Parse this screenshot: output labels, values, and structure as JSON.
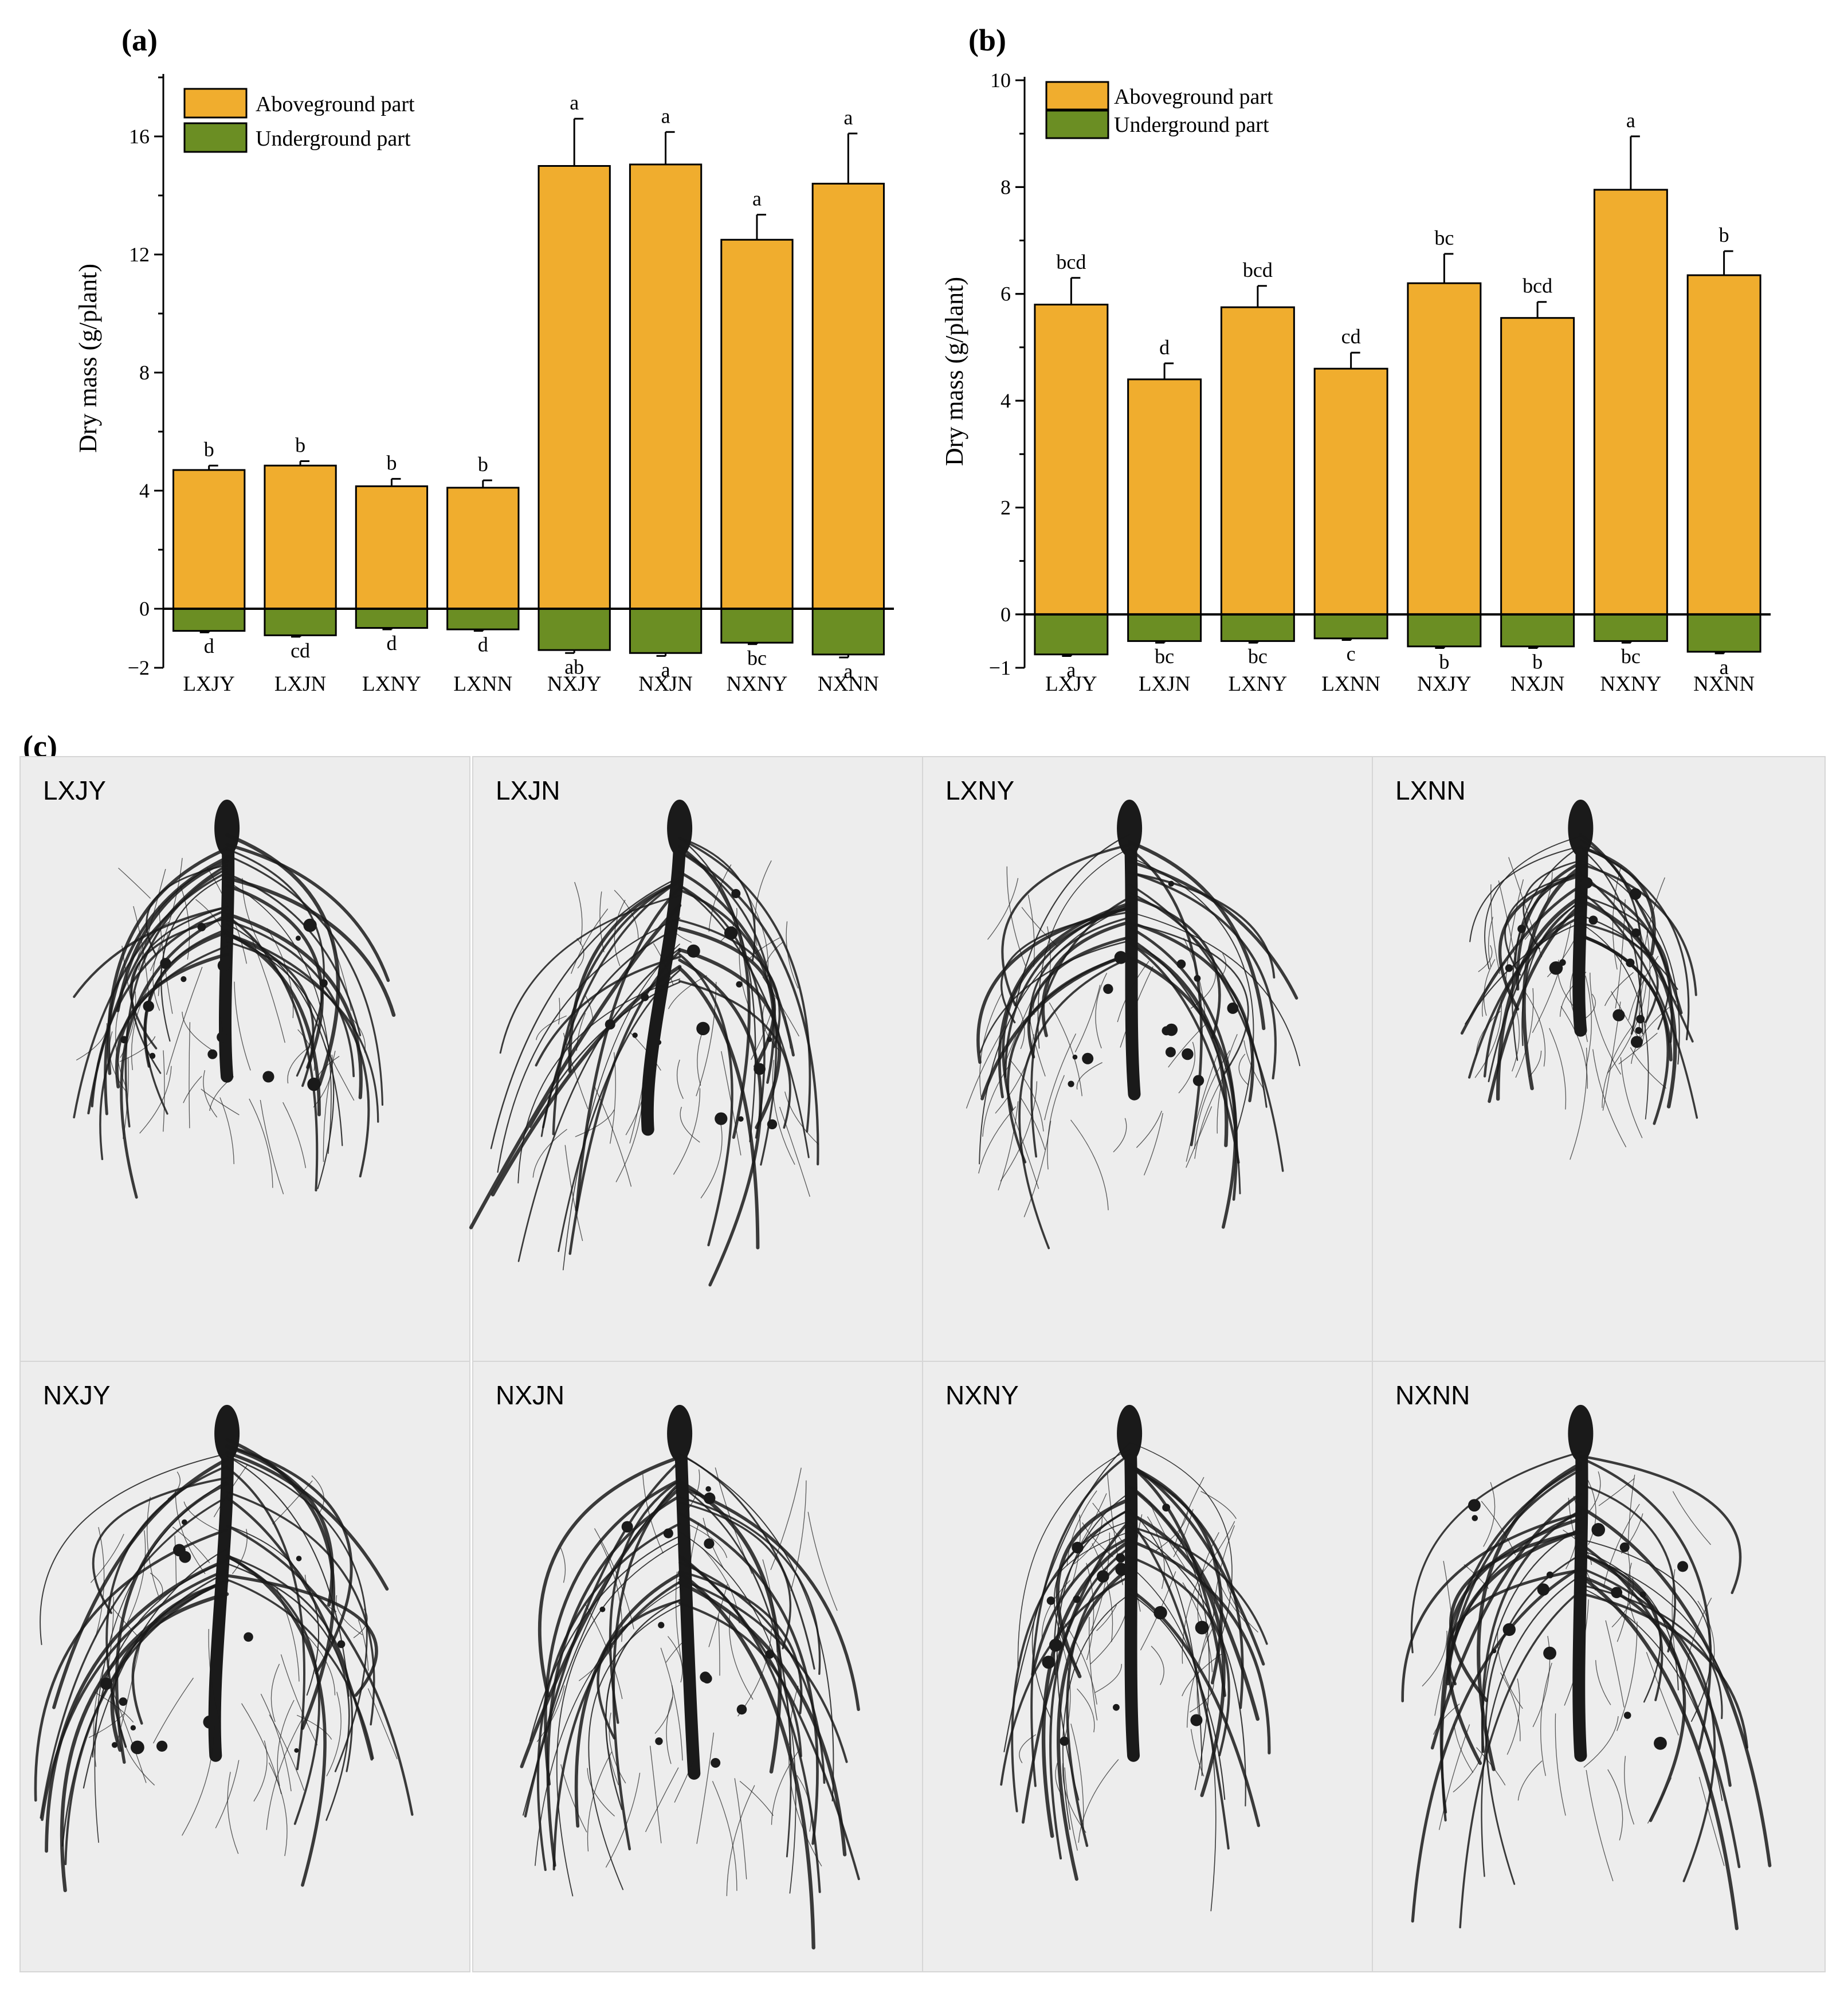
{
  "colors": {
    "above": "#F0AD2E",
    "below": "#6B8E23",
    "photo_bg": "#EDEDED",
    "root": "#1A1A1A"
  },
  "chart_data": [
    {
      "panel": "(a)",
      "type": "bar",
      "ylabel": "Dry mass (g/plant)",
      "ylim": [
        -2,
        18
      ],
      "yticks": [
        -2,
        0,
        4,
        8,
        12,
        16
      ],
      "categories": [
        "LXJY",
        "LXJN",
        "LXNY",
        "LXNN",
        "NXJY",
        "NXJN",
        "NXNY",
        "NXNN"
      ],
      "legend": [
        "Aboveground part",
        "Underground part"
      ],
      "series": [
        {
          "name": "Aboveground part",
          "values": [
            4.7,
            4.85,
            4.15,
            4.1,
            15.0,
            15.05,
            12.5,
            14.4
          ],
          "errors": [
            0.15,
            0.15,
            0.25,
            0.25,
            1.6,
            1.1,
            0.85,
            1.7
          ],
          "letters": [
            "b",
            "b",
            "b",
            "b",
            "a",
            "a",
            "a",
            "a"
          ]
        },
        {
          "name": "Underground part",
          "values": [
            -0.75,
            -0.9,
            -0.65,
            -0.7,
            -1.4,
            -1.5,
            -1.15,
            -1.55
          ],
          "errors": [
            0.05,
            0.05,
            0.05,
            0.05,
            0.1,
            0.1,
            0.05,
            0.1
          ],
          "letters": [
            "d",
            "cd",
            "d",
            "d",
            "ab",
            "a",
            "bc",
            "a"
          ]
        }
      ]
    },
    {
      "panel": "(b)",
      "type": "bar",
      "ylabel": "Dry mass (g/plant)",
      "ylim": [
        -1,
        10
      ],
      "yticks": [
        -1,
        0,
        2,
        4,
        6,
        8,
        10
      ],
      "categories": [
        "LXJY",
        "LXJN",
        "LXNY",
        "LXNN",
        "NXJY",
        "NXJN",
        "NXNY",
        "NXNN"
      ],
      "legend": [
        "Aboveground part",
        "Underground part"
      ],
      "series": [
        {
          "name": "Aboveground part",
          "values": [
            5.8,
            4.4,
            5.75,
            4.6,
            6.2,
            5.55,
            7.95,
            6.35
          ],
          "errors": [
            0.5,
            0.3,
            0.4,
            0.3,
            0.55,
            0.3,
            1.0,
            0.45
          ],
          "letters": [
            "bcd",
            "d",
            "bcd",
            "cd",
            "bc",
            "bcd",
            "a",
            "b"
          ]
        },
        {
          "name": "Underground part",
          "values": [
            -0.75,
            -0.5,
            -0.5,
            -0.45,
            -0.6,
            -0.6,
            -0.5,
            -0.7
          ],
          "errors": [
            0.03,
            0.03,
            0.03,
            0.03,
            0.03,
            0.03,
            0.03,
            0.03
          ],
          "letters": [
            "a",
            "bc",
            "bc",
            "c",
            "b",
            "b",
            "bc",
            "a"
          ]
        }
      ]
    }
  ],
  "photo_panel": {
    "label": "(c)",
    "images": [
      {
        "label": "LXJY",
        "size": 0.75,
        "spread": 0.85,
        "tilt": 0
      },
      {
        "label": "LXJN",
        "size": 0.9,
        "spread": 0.8,
        "tilt": -0.35
      },
      {
        "label": "LXNY",
        "size": 0.8,
        "spread": 0.85,
        "tilt": 0.05
      },
      {
        "label": "LXNN",
        "size": 0.62,
        "spread": 0.6,
        "tilt": 0
      },
      {
        "label": "NXJY",
        "size": 0.95,
        "spread": 1.0,
        "tilt": -0.1
      },
      {
        "label": "NXJN",
        "size": 1.0,
        "spread": 0.85,
        "tilt": 0.15
      },
      {
        "label": "NXNY",
        "size": 0.95,
        "spread": 0.7,
        "tilt": 0.05
      },
      {
        "label": "NXNN",
        "size": 0.95,
        "spread": 0.95,
        "tilt": 0
      }
    ]
  }
}
